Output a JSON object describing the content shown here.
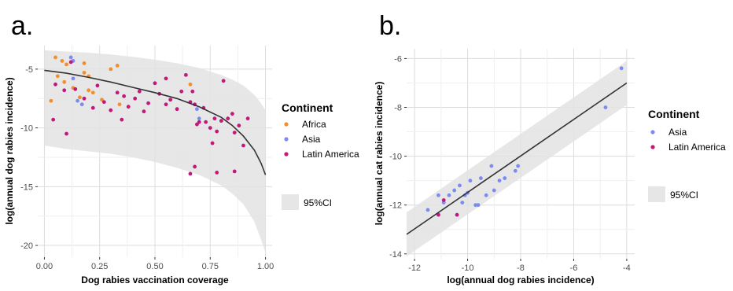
{
  "chart_data": [
    {
      "type": "scatter",
      "panel_label": "a.",
      "xlabel": "Dog rabies vaccination coverage",
      "ylabel": "log(annual dog rabies incidence)",
      "xlim": [
        -0.03,
        1.03
      ],
      "ylim": [
        -21,
        -3
      ],
      "xticks": [
        "0.00",
        "0.25",
        "0.50",
        "0.75",
        "1.00"
      ],
      "xtick_values": [
        0,
        0.25,
        0.5,
        0.75,
        1.0
      ],
      "yticks": [
        "-5",
        "-10",
        "-15",
        "-20"
      ],
      "ytick_values": [
        -5,
        -10,
        -15,
        -20
      ],
      "grid": true,
      "legend": {
        "title": "Continent",
        "placement": "right",
        "items": [
          {
            "name": "Africa",
            "color": "#F28E2B"
          },
          {
            "name": "Asia",
            "color": "#7B8CF0"
          },
          {
            "name": "Latin America",
            "color": "#C2187B"
          }
        ],
        "ci_label": "95%CI"
      },
      "fit_line": {
        "x": [
          0.0,
          0.1,
          0.2,
          0.3,
          0.4,
          0.5,
          0.6,
          0.7,
          0.8,
          0.85,
          0.9,
          0.95,
          0.98,
          1.0
        ],
        "y": [
          -5.1,
          -5.35,
          -5.7,
          -6.1,
          -6.55,
          -7.0,
          -7.5,
          -8.2,
          -9.1,
          -9.8,
          -10.7,
          -11.9,
          -13.0,
          -14.0
        ],
        "ci_upper": [
          -3.4,
          -3.5,
          -3.6,
          -3.75,
          -3.95,
          -4.2,
          -4.5,
          -4.9,
          -5.5,
          -5.9,
          -6.4,
          -7.2,
          -7.9,
          -8.5
        ],
        "ci_lower": [
          -11.5,
          -11.8,
          -12.0,
          -12.2,
          -12.5,
          -12.9,
          -13.4,
          -14.0,
          -14.9,
          -15.6,
          -16.5,
          -18.0,
          -19.5,
          -20.6
        ]
      },
      "series": [
        {
          "name": "Africa",
          "color": "#F28E2B",
          "points": [
            [
              0.05,
              -4.0
            ],
            [
              0.06,
              -5.6
            ],
            [
              0.08,
              -4.3
            ],
            [
              0.1,
              -4.6
            ],
            [
              0.13,
              -6.6
            ],
            [
              0.16,
              -7.4
            ],
            [
              0.18,
              -5.3
            ],
            [
              0.2,
              -5.6
            ],
            [
              0.2,
              -6.8
            ],
            [
              0.26,
              -7.6
            ],
            [
              0.3,
              -5.0
            ],
            [
              0.33,
              -4.7
            ],
            [
              0.34,
              -8.0
            ],
            [
              0.18,
              -4.5
            ],
            [
              0.66,
              -6.3
            ],
            [
              0.03,
              -7.7
            ],
            [
              0.09,
              -6.1
            ],
            [
              0.22,
              -7.0
            ]
          ]
        },
        {
          "name": "Asia",
          "color": "#7B8CF0",
          "points": [
            [
              0.12,
              -4.0
            ],
            [
              0.13,
              -4.3
            ],
            [
              0.15,
              -7.7
            ],
            [
              0.17,
              -8.0
            ],
            [
              0.13,
              -5.8
            ],
            [
              0.69,
              -8.4
            ],
            [
              0.7,
              -9.2
            ]
          ]
        },
        {
          "name": "Latin America",
          "color": "#C2187B",
          "points": [
            [
              0.04,
              -9.3
            ],
            [
              0.05,
              -6.3
            ],
            [
              0.09,
              -6.8
            ],
            [
              0.1,
              -10.5
            ],
            [
              0.12,
              -4.4
            ],
            [
              0.14,
              -6.7
            ],
            [
              0.18,
              -7.5
            ],
            [
              0.22,
              -8.3
            ],
            [
              0.24,
              -6.4
            ],
            [
              0.27,
              -7.8
            ],
            [
              0.3,
              -8.5
            ],
            [
              0.33,
              -7.0
            ],
            [
              0.35,
              -9.3
            ],
            [
              0.36,
              -7.3
            ],
            [
              0.38,
              -8.2
            ],
            [
              0.41,
              -7.5
            ],
            [
              0.43,
              -6.9
            ],
            [
              0.47,
              -7.9
            ],
            [
              0.5,
              -6.2
            ],
            [
              0.52,
              -7.1
            ],
            [
              0.55,
              -8.0
            ],
            [
              0.57,
              -7.6
            ],
            [
              0.6,
              -8.4
            ],
            [
              0.62,
              -6.9
            ],
            [
              0.64,
              -5.5
            ],
            [
              0.66,
              -7.8
            ],
            [
              0.67,
              -6.9
            ],
            [
              0.68,
              -8.0
            ],
            [
              0.69,
              -9.7
            ],
            [
              0.7,
              -9.5
            ],
            [
              0.72,
              -8.3
            ],
            [
              0.73,
              -9.5
            ],
            [
              0.75,
              -10.0
            ],
            [
              0.77,
              -9.2
            ],
            [
              0.78,
              -10.3
            ],
            [
              0.8,
              -9.4
            ],
            [
              0.81,
              -6.0
            ],
            [
              0.83,
              -9.2
            ],
            [
              0.85,
              -8.8
            ],
            [
              0.86,
              -10.4
            ],
            [
              0.88,
              -9.8
            ],
            [
              0.9,
              -11.5
            ],
            [
              0.92,
              -9.2
            ],
            [
              0.66,
              -13.9
            ],
            [
              0.68,
              -13.3
            ],
            [
              0.78,
              -13.8
            ],
            [
              0.86,
              -13.7
            ],
            [
              0.76,
              -11.3
            ],
            [
              0.55,
              -5.8
            ],
            [
              0.45,
              -8.6
            ]
          ]
        }
      ]
    },
    {
      "type": "scatter",
      "panel_label": "b.",
      "xlabel": "log(annual dog rabies incidence)",
      "ylabel": "log(annual cat rabies incidence)",
      "xlim": [
        -12.3,
        -3.7
      ],
      "ylim": [
        -14.2,
        -5.6
      ],
      "xticks": [
        "-12",
        "-10",
        "-8",
        "-6",
        "-4"
      ],
      "xtick_values": [
        -12,
        -10,
        -8,
        -6,
        -4
      ],
      "yticks": [
        "-6",
        "-8",
        "-10",
        "-12",
        "-14"
      ],
      "ytick_values": [
        -6,
        -8,
        -10,
        -12,
        -14
      ],
      "grid": true,
      "legend": {
        "title": "Continent",
        "placement": "right",
        "items": [
          {
            "name": "Asia",
            "color": "#7B8CF0"
          },
          {
            "name": "Latin America",
            "color": "#C2187B"
          }
        ],
        "ci_label": "95%CI"
      },
      "fit_line": {
        "x": [
          -12.3,
          -4.0
        ],
        "y": [
          -13.2,
          -7.0
        ],
        "ci_upper": [
          -12.3,
          -6.1
        ],
        "ci_lower": [
          -14.1,
          -7.9
        ]
      },
      "series": [
        {
          "name": "Asia",
          "color": "#7B8CF0",
          "points": [
            [
              -11.5,
              -12.2
            ],
            [
              -11.1,
              -11.6
            ],
            [
              -10.9,
              -11.9
            ],
            [
              -10.7,
              -11.6
            ],
            [
              -10.5,
              -11.4
            ],
            [
              -10.3,
              -11.2
            ],
            [
              -10.2,
              -11.9
            ],
            [
              -10.1,
              -11.6
            ],
            [
              -10.0,
              -11.5
            ],
            [
              -9.9,
              -11.0
            ],
            [
              -9.7,
              -12.0
            ],
            [
              -9.6,
              -12.0
            ],
            [
              -9.5,
              -10.9
            ],
            [
              -9.3,
              -11.6
            ],
            [
              -9.1,
              -10.4
            ],
            [
              -9.0,
              -11.4
            ],
            [
              -8.8,
              -11.0
            ],
            [
              -8.6,
              -10.9
            ],
            [
              -8.2,
              -10.6
            ],
            [
              -8.1,
              -10.4
            ],
            [
              -4.8,
              -8.0
            ],
            [
              -4.2,
              -6.4
            ]
          ]
        },
        {
          "name": "Latin America",
          "color": "#C2187B",
          "points": [
            [
              -11.1,
              -12.4
            ],
            [
              -10.9,
              -11.8
            ],
            [
              -10.4,
              -12.4
            ]
          ]
        }
      ]
    }
  ]
}
